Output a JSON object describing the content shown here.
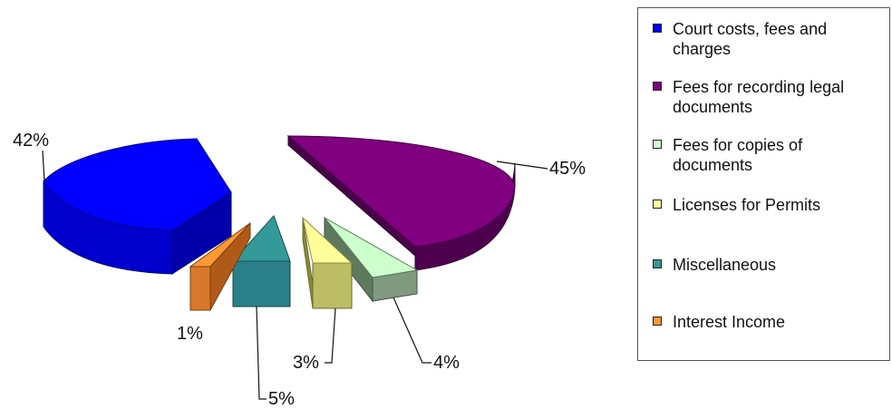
{
  "chart_data": {
    "type": "pie",
    "title": "",
    "legend_position": "right",
    "slices": [
      {
        "name": "Court costs, fees and charges",
        "value": 42,
        "label": "42%",
        "color": "#0000ff"
      },
      {
        "name": "Fees for recording legal documents",
        "value": 45,
        "label": "45%",
        "color": "#800080"
      },
      {
        "name": "Fees for copies of documents",
        "value": 4,
        "label": "4%",
        "color": "#ccffcc"
      },
      {
        "name": "Licenses for Permits",
        "value": 3,
        "label": "3%",
        "color": "#ffff99"
      },
      {
        "name": "Miscellaneous",
        "value": 5,
        "label": "5%",
        "color": "#339999"
      },
      {
        "name": "Interest Income",
        "value": 1,
        "label": "1%",
        "color": "#ff9933"
      }
    ]
  }
}
